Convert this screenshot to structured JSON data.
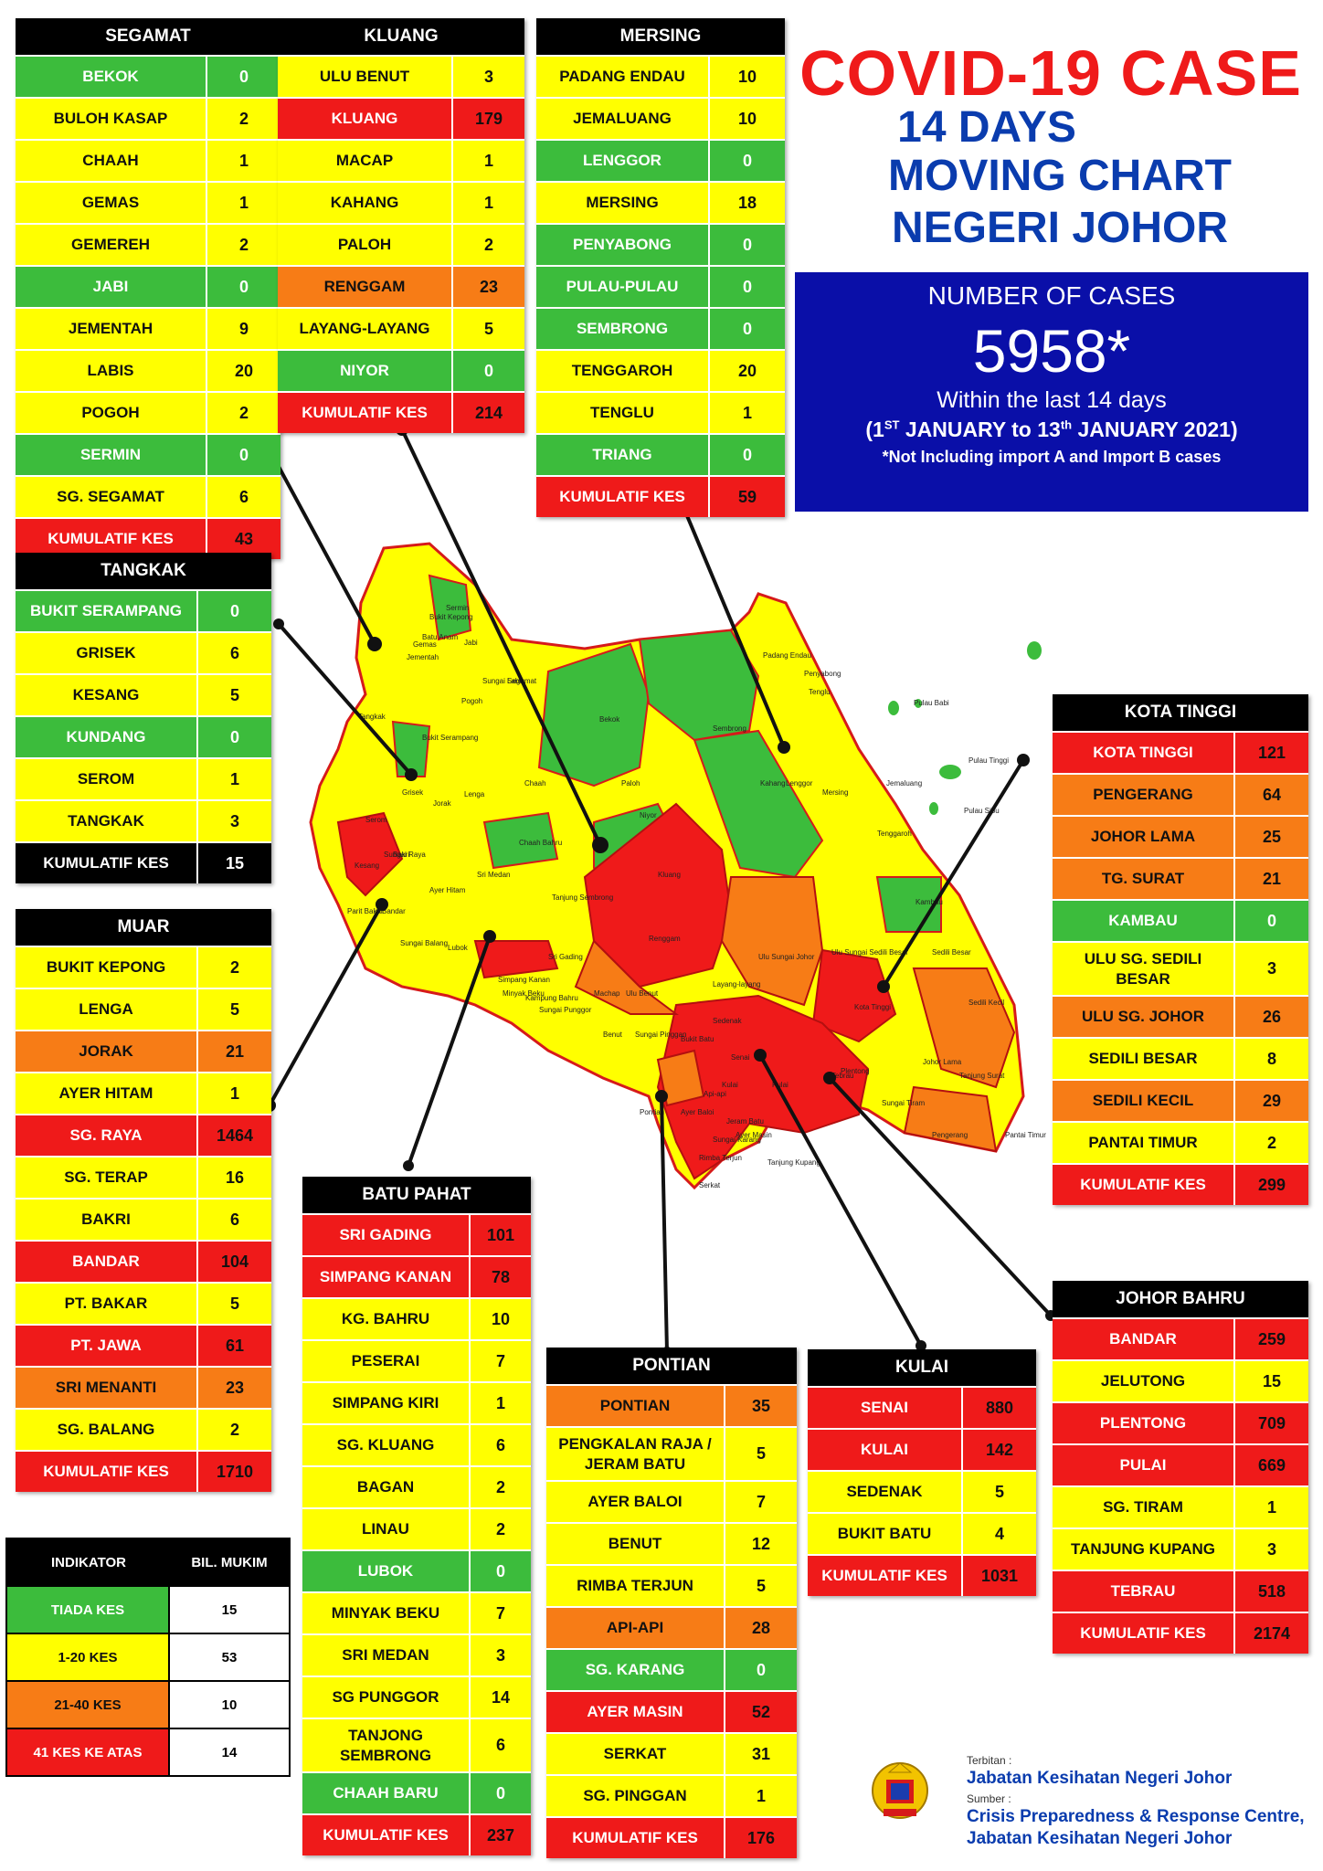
{
  "header": {
    "title": "COVID-19 CASE",
    "line1": "14 DAYS",
    "line2": "MOVING CHART",
    "line3": "NEGERI JOHOR"
  },
  "summary": {
    "label": "NUMBER OF CASES",
    "total": "5958*",
    "within": "Within the last 14 days",
    "range_pre": "(1",
    "range_sup1": "ST",
    "range_mid": " JANUARY to 13",
    "range_sup2": "th",
    "range_post": " JANUARY 2021)",
    "note": "*Not Including import A and Import B cases"
  },
  "colors": {
    "green": "#3cbc3c",
    "yellow": "#ffff00",
    "orange": "#f77c16",
    "red": "#ef1a1a",
    "blue": "#0a0fa8"
  },
  "districts": {
    "segamat": {
      "title": "SEGAMAT",
      "rows": [
        {
          "name": "BEKOK",
          "value": "0",
          "level": "green"
        },
        {
          "name": "BULOH KASAP",
          "value": "2",
          "level": "yellow"
        },
        {
          "name": "CHAAH",
          "value": "1",
          "level": "yellow"
        },
        {
          "name": "GEMAS",
          "value": "1",
          "level": "yellow"
        },
        {
          "name": "GEMEREH",
          "value": "2",
          "level": "yellow"
        },
        {
          "name": "JABI",
          "value": "0",
          "level": "green"
        },
        {
          "name": "JEMENTAH",
          "value": "9",
          "level": "yellow"
        },
        {
          "name": "LABIS",
          "value": "20",
          "level": "yellow"
        },
        {
          "name": "POGOH",
          "value": "2",
          "level": "yellow"
        },
        {
          "name": "SERMIN",
          "value": "0",
          "level": "green"
        },
        {
          "name": "SG. SEGAMAT",
          "value": "6",
          "level": "yellow"
        },
        {
          "name": "KUMULATIF KES",
          "value": "43",
          "level": "red"
        }
      ]
    },
    "kluang": {
      "title": "KLUANG",
      "rows": [
        {
          "name": "ULU BENUT",
          "value": "3",
          "level": "yellow"
        },
        {
          "name": "KLUANG",
          "value": "179",
          "level": "red"
        },
        {
          "name": "MACAP",
          "value": "1",
          "level": "yellow"
        },
        {
          "name": "KAHANG",
          "value": "1",
          "level": "yellow"
        },
        {
          "name": "PALOH",
          "value": "2",
          "level": "yellow"
        },
        {
          "name": "RENGGAM",
          "value": "23",
          "level": "orange"
        },
        {
          "name": "LAYANG-LAYANG",
          "value": "5",
          "level": "yellow"
        },
        {
          "name": "NIYOR",
          "value": "0",
          "level": "green"
        },
        {
          "name": "KUMULATIF KES",
          "value": "214",
          "level": "red"
        }
      ]
    },
    "mersing": {
      "title": "MERSING",
      "rows": [
        {
          "name": "PADANG ENDAU",
          "value": "10",
          "level": "yellow"
        },
        {
          "name": "JEMALUANG",
          "value": "10",
          "level": "yellow"
        },
        {
          "name": "LENGGOR",
          "value": "0",
          "level": "green"
        },
        {
          "name": "MERSING",
          "value": "18",
          "level": "yellow"
        },
        {
          "name": "PENYABONG",
          "value": "0",
          "level": "green"
        },
        {
          "name": "PULAU-PULAU",
          "value": "0",
          "level": "green"
        },
        {
          "name": "SEMBRONG",
          "value": "0",
          "level": "green"
        },
        {
          "name": "TENGGAROH",
          "value": "20",
          "level": "yellow"
        },
        {
          "name": "TENGLU",
          "value": "1",
          "level": "yellow"
        },
        {
          "name": "TRIANG",
          "value": "0",
          "level": "green"
        },
        {
          "name": "KUMULATIF KES",
          "value": "59",
          "level": "red"
        }
      ]
    },
    "tangkak": {
      "title": "TANGKAK",
      "rows": [
        {
          "name": "BUKIT SERAMPANG",
          "value": "0",
          "level": "green"
        },
        {
          "name": "GRISEK",
          "value": "6",
          "level": "yellow"
        },
        {
          "name": "KESANG",
          "value": "5",
          "level": "yellow"
        },
        {
          "name": "KUNDANG",
          "value": "0",
          "level": "green"
        },
        {
          "name": "SEROM",
          "value": "1",
          "level": "yellow"
        },
        {
          "name": "TANGKAK",
          "value": "3",
          "level": "yellow"
        },
        {
          "name": "KUMULATIF KES",
          "value": "15",
          "level": "black"
        }
      ]
    },
    "muar": {
      "title": "MUAR",
      "rows": [
        {
          "name": "BUKIT KEPONG",
          "value": "2",
          "level": "yellow"
        },
        {
          "name": "LENGA",
          "value": "5",
          "level": "yellow"
        },
        {
          "name": "JORAK",
          "value": "21",
          "level": "orange"
        },
        {
          "name": "AYER HITAM",
          "value": "1",
          "level": "yellow"
        },
        {
          "name": "SG. RAYA",
          "value": "1464",
          "level": "red"
        },
        {
          "name": "SG. TERAP",
          "value": "16",
          "level": "yellow"
        },
        {
          "name": "BAKRI",
          "value": "6",
          "level": "yellow"
        },
        {
          "name": "BANDAR",
          "value": "104",
          "level": "red"
        },
        {
          "name": "PT. BAKAR",
          "value": "5",
          "level": "yellow"
        },
        {
          "name": "PT. JAWA",
          "value": "61",
          "level": "red"
        },
        {
          "name": "SRI MENANTI",
          "value": "23",
          "level": "orange"
        },
        {
          "name": "SG. BALANG",
          "value": "2",
          "level": "yellow"
        },
        {
          "name": "KUMULATIF KES",
          "value": "1710",
          "level": "red"
        }
      ]
    },
    "kotatinggi": {
      "title": "KOTA TINGGI",
      "rows": [
        {
          "name": "KOTA TINGGI",
          "value": "121",
          "level": "red"
        },
        {
          "name": "PENGERANG",
          "value": "64",
          "level": "orange"
        },
        {
          "name": "JOHOR LAMA",
          "value": "25",
          "level": "orange"
        },
        {
          "name": "TG. SURAT",
          "value": "21",
          "level": "orange"
        },
        {
          "name": "KAMBAU",
          "value": "0",
          "level": "green"
        },
        {
          "name": "ULU SG. SEDILI BESAR",
          "value": "3",
          "level": "yellow"
        },
        {
          "name": "ULU  SG. JOHOR",
          "value": "26",
          "level": "orange"
        },
        {
          "name": "SEDILI BESAR",
          "value": "8",
          "level": "yellow"
        },
        {
          "name": "SEDILI KECIL",
          "value": "29",
          "level": "orange"
        },
        {
          "name": "PANTAI TIMUR",
          "value": "2",
          "level": "yellow"
        },
        {
          "name": "KUMULATIF KES",
          "value": "299",
          "level": "red"
        }
      ]
    },
    "batupahat": {
      "title": "BATU PAHAT",
      "rows": [
        {
          "name": "SRI GADING",
          "value": "101",
          "level": "red"
        },
        {
          "name": "SIMPANG KANAN",
          "value": "78",
          "level": "red"
        },
        {
          "name": "KG. BAHRU",
          "value": "10",
          "level": "yellow"
        },
        {
          "name": "PESERAI",
          "value": "7",
          "level": "yellow"
        },
        {
          "name": "SIMPANG KIRI",
          "value": "1",
          "level": "yellow"
        },
        {
          "name": "SG. KLUANG",
          "value": "6",
          "level": "yellow"
        },
        {
          "name": "BAGAN",
          "value": "2",
          "level": "yellow"
        },
        {
          "name": "LINAU",
          "value": "2",
          "level": "yellow"
        },
        {
          "name": "LUBOK",
          "value": "0",
          "level": "green"
        },
        {
          "name": "MINYAK BEKU",
          "value": "7",
          "level": "yellow"
        },
        {
          "name": "SRI MEDAN",
          "value": "3",
          "level": "yellow"
        },
        {
          "name": "SG PUNGGOR",
          "value": "14",
          "level": "yellow"
        },
        {
          "name": "TANJONG SEMBRONG",
          "value": "6",
          "level": "yellow"
        },
        {
          "name": "CHAAH BARU",
          "value": "0",
          "level": "green"
        },
        {
          "name": "KUMULATIF KES",
          "value": "237",
          "level": "red"
        }
      ]
    },
    "pontian": {
      "title": "PONTIAN",
      "rows": [
        {
          "name": "PONTIAN",
          "value": "35",
          "level": "orange"
        },
        {
          "name": "PENGKALAN RAJA / JERAM BATU",
          "value": "5",
          "level": "yellow"
        },
        {
          "name": "AYER BALOI",
          "value": "7",
          "level": "yellow"
        },
        {
          "name": "BENUT",
          "value": "12",
          "level": "yellow"
        },
        {
          "name": "RIMBA TERJUN",
          "value": "5",
          "level": "yellow"
        },
        {
          "name": "API-API",
          "value": "28",
          "level": "orange"
        },
        {
          "name": "SG. KARANG",
          "value": "0",
          "level": "green"
        },
        {
          "name": "AYER MASIN",
          "value": "52",
          "level": "red"
        },
        {
          "name": "SERKAT",
          "value": "31",
          "level": "yellow"
        },
        {
          "name": "SG. PINGGAN",
          "value": "1",
          "level": "yellow"
        },
        {
          "name": "KUMULATIF KES",
          "value": "176",
          "level": "red"
        }
      ]
    },
    "kulai": {
      "title": "KULAI",
      "rows": [
        {
          "name": "SENAI",
          "value": "880",
          "level": "red"
        },
        {
          "name": "KULAI",
          "value": "142",
          "level": "red"
        },
        {
          "name": "SEDENAK",
          "value": "5",
          "level": "yellow"
        },
        {
          "name": "BUKIT BATU",
          "value": "4",
          "level": "yellow"
        },
        {
          "name": "KUMULATIF KES",
          "value": "1031",
          "level": "red"
        }
      ]
    },
    "johorbahru": {
      "title": "JOHOR BAHRU",
      "rows": [
        {
          "name": "BANDAR",
          "value": "259",
          "level": "red"
        },
        {
          "name": "JELUTONG",
          "value": "15",
          "level": "yellow"
        },
        {
          "name": "PLENTONG",
          "value": "709",
          "level": "red"
        },
        {
          "name": "PULAI",
          "value": "669",
          "level": "red"
        },
        {
          "name": "SG. TIRAM",
          "value": "1",
          "level": "yellow"
        },
        {
          "name": "TANJUNG KUPANG",
          "value": "3",
          "level": "yellow"
        },
        {
          "name": "TEBRAU",
          "value": "518",
          "level": "red"
        },
        {
          "name": "KUMULATIF KES",
          "value": "2174",
          "level": "red"
        }
      ]
    }
  },
  "legend": {
    "col1": "INDIKATOR",
    "col2": "BIL. MUKIM",
    "rows": [
      {
        "name": "TIADA KES",
        "value": "15",
        "level": "green"
      },
      {
        "name": "1-20 KES",
        "value": "53",
        "level": "yellow"
      },
      {
        "name": "21-40 KES",
        "value": "10",
        "level": "orange"
      },
      {
        "name": "41 KES KE ATAS",
        "value": "14",
        "level": "red"
      }
    ]
  },
  "map_labels": [
    "Gemas",
    "Bukit Kepong",
    "Batu Anam",
    "Jementah",
    "Sermin",
    "Jabi",
    "Sungai Segamat",
    "Pogoh",
    "Labis",
    "Bekok",
    "Tangkak",
    "Bukit Serampang",
    "Grisek",
    "Lenga",
    "Serom",
    "Kesang",
    "Sungai Raya",
    "Bakri",
    "Jorak",
    "Chaah",
    "Paloh",
    "Niyor",
    "Kahang",
    "Chaah Bahru",
    "Ayer Hitam",
    "Sri Medan",
    "Tanjung Sembrong",
    "Kluang",
    "Renggam",
    "Lenggor",
    "Mersing",
    "Tenggaroh",
    "Sembrong",
    "Padang Endau",
    "Penyabong",
    "Tenglu",
    "Jemaluang",
    "Pulau Babi",
    "Pulau Tinggi",
    "Pulau Sibu",
    "Sri Gading",
    "Minyak Beku",
    "Kampung Bahru",
    "Sungai Punggor",
    "Machap",
    "Ulu Benut",
    "Benut",
    "Sungai Pinggan",
    "Layang-layang",
    "Sedenak",
    "Bukit Batu",
    "Ulu Sungai Johor",
    "Ulu Sungai Sedili Besar",
    "Kambau",
    "Sedili Besar",
    "Sedili Kecil",
    "Kota Tinggi",
    "Johor Lama",
    "Tanjung Surat",
    "Pengerang",
    "Pantai Timur",
    "Senai",
    "Kulai",
    "Pulai",
    "Tebrau",
    "Plentong",
    "Sungai Tiram",
    "Tanjung Kupang",
    "Pontian",
    "Ayer Baloi",
    "Rimba Terjun",
    "Serkat",
    "Jeram Batu",
    "Ayer Masin",
    "Simpang Kanan",
    "Lubok",
    "Parit Bakar",
    "Bandar",
    "Sungai Balang",
    "Sungai Karang",
    "Api-api"
  ],
  "footer": {
    "terbitan_label": "Terbitan :",
    "terbitan": "Jabatan Kesihatan Negeri Johor",
    "sumber_label": "Sumber :",
    "sumber1": "Crisis Preparedness & Response Centre,",
    "sumber2": "Jabatan Kesihatan Negeri Johor"
  }
}
